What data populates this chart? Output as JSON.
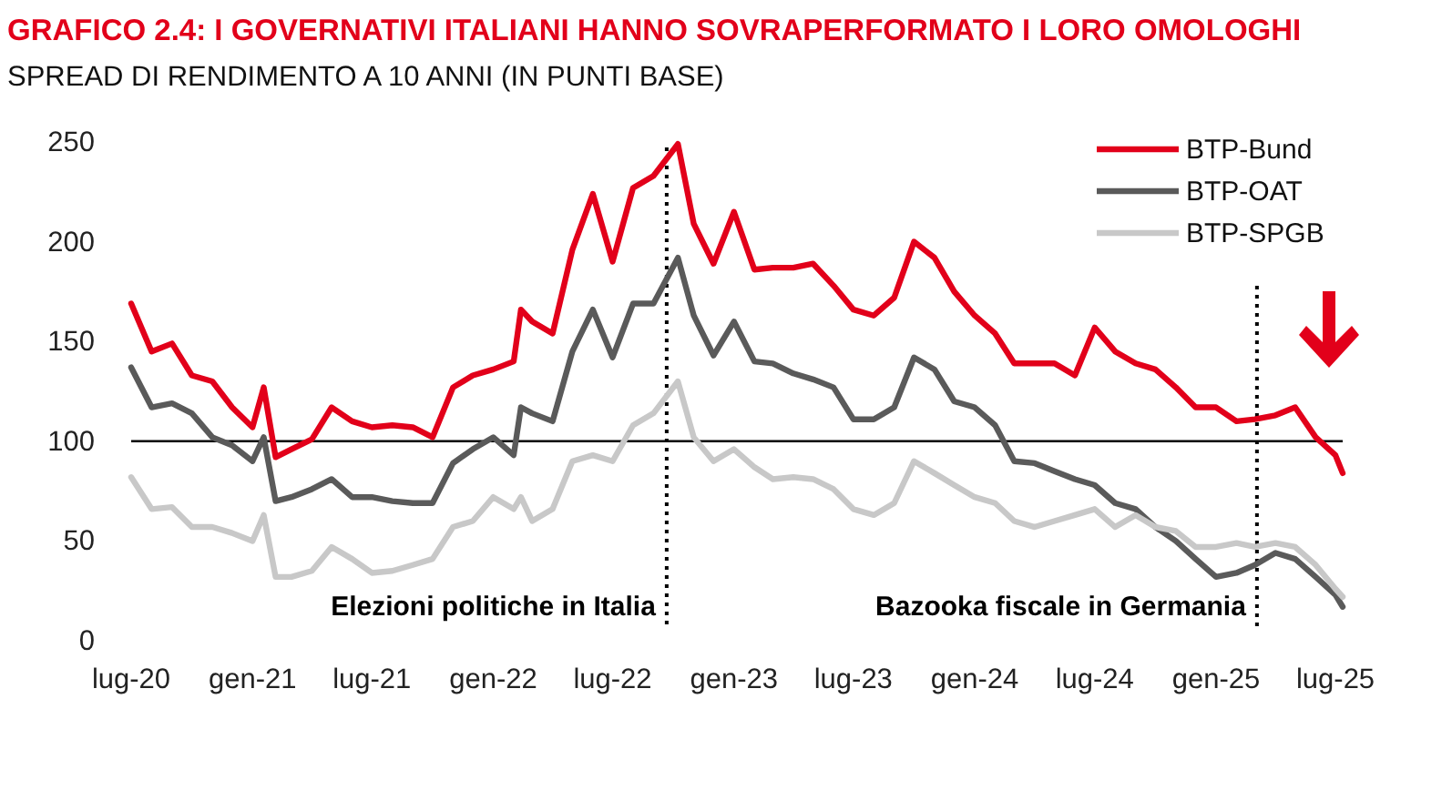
{
  "chart_data": {
    "type": "line",
    "title": "GRAFICO 2.4: I GOVERNATIVI ITALIANI HANNO SOVRAPERFORMATO I LORO OMOLOGHI",
    "subtitle": "SPREAD DI RENDIMENTO A 10 ANNI (IN PUNTI BASE)",
    "x": [
      "2020-07-01",
      "2020-08-01",
      "2020-09-01",
      "2020-10-01",
      "2020-11-01",
      "2020-12-01",
      "2021-01-01",
      "2021-01-18",
      "2021-02-05",
      "2021-03-01",
      "2021-04-01",
      "2021-05-01",
      "2021-06-01",
      "2021-07-01",
      "2021-08-01",
      "2021-09-01",
      "2021-10-01",
      "2021-11-01",
      "2021-12-01",
      "2022-01-01",
      "2022-02-01",
      "2022-02-12",
      "2022-03-01",
      "2022-04-01",
      "2022-05-01",
      "2022-06-01",
      "2022-07-01",
      "2022-08-01",
      "2022-09-01",
      "2022-10-08",
      "2022-11-01",
      "2022-12-01",
      "2023-01-01",
      "2023-02-01",
      "2023-03-01",
      "2023-04-01",
      "2023-05-01",
      "2023-06-01",
      "2023-07-01",
      "2023-08-01",
      "2023-09-01",
      "2023-10-01",
      "2023-11-01",
      "2023-12-01",
      "2024-01-01",
      "2024-02-01",
      "2024-03-01",
      "2024-04-01",
      "2024-05-01",
      "2024-06-01",
      "2024-07-01",
      "2024-08-01",
      "2024-09-01",
      "2024-10-01",
      "2024-11-01",
      "2024-12-01",
      "2025-01-01",
      "2025-02-01",
      "2025-03-01",
      "2025-04-01",
      "2025-05-01",
      "2025-06-01",
      "2025-07-01",
      "2025-07-12"
    ],
    "series": [
      {
        "name": "BTP-Bund",
        "color": "#e2001a",
        "values": [
          169,
          145,
          149,
          133,
          130,
          117,
          107,
          127,
          92,
          96,
          101,
          117,
          110,
          107,
          108,
          107,
          102,
          127,
          133,
          136,
          140,
          166,
          160,
          154,
          196,
          224,
          190,
          227,
          233,
          249,
          209,
          189,
          215,
          186,
          187,
          187,
          189,
          178,
          166,
          163,
          172,
          200,
          192,
          175,
          163,
          154,
          139,
          139,
          139,
          133,
          157,
          145,
          139,
          136,
          127,
          117,
          117,
          110,
          111,
          113,
          117,
          102,
          93,
          84
        ]
      },
      {
        "name": "BTP-OAT",
        "color": "#5a5a5a",
        "values": [
          137,
          117,
          119,
          114,
          102,
          98,
          90,
          102,
          70,
          72,
          76,
          81,
          72,
          72,
          70,
          69,
          69,
          89,
          96,
          102,
          93,
          117,
          114,
          110,
          145,
          166,
          142,
          169,
          169,
          192,
          163,
          143,
          160,
          140,
          139,
          134,
          131,
          127,
          111,
          111,
          117,
          142,
          136,
          120,
          117,
          108,
          90,
          89,
          85,
          81,
          78,
          69,
          66,
          57,
          50,
          41,
          32,
          34,
          38,
          44,
          41,
          32,
          23,
          17
        ]
      },
      {
        "name": "BTP-SPGB",
        "color": "#c8c8c8",
        "values": [
          82,
          66,
          67,
          57,
          57,
          54,
          50,
          63,
          32,
          32,
          35,
          47,
          41,
          34,
          35,
          38,
          41,
          57,
          60,
          72,
          66,
          72,
          60,
          66,
          90,
          93,
          90,
          108,
          114,
          130,
          102,
          90,
          96,
          87,
          81,
          82,
          81,
          76,
          66,
          63,
          69,
          90,
          84,
          78,
          72,
          69,
          60,
          57,
          60,
          63,
          66,
          57,
          63,
          57,
          55,
          47,
          47,
          49,
          47,
          49,
          47,
          38,
          26,
          22
        ]
      }
    ],
    "xlim": [
      "2020-07-01",
      "2025-07-12"
    ],
    "xticks": [
      {
        "value": "2020-07-01",
        "label": "lug-20"
      },
      {
        "value": "2021-01-01",
        "label": "gen-21"
      },
      {
        "value": "2021-07-01",
        "label": "lug-21"
      },
      {
        "value": "2022-01-01",
        "label": "gen-22"
      },
      {
        "value": "2022-07-01",
        "label": "lug-22"
      },
      {
        "value": "2023-01-01",
        "label": "gen-23"
      },
      {
        "value": "2023-07-01",
        "label": "lug-23"
      },
      {
        "value": "2024-01-01",
        "label": "gen-24"
      },
      {
        "value": "2024-07-01",
        "label": "lug-24"
      },
      {
        "value": "2025-01-01",
        "label": "gen-25"
      },
      {
        "value": "2025-07-01",
        "label": "lug-25"
      }
    ],
    "ylim": [
      0,
      250
    ],
    "yticks": [
      0,
      50,
      100,
      150,
      200,
      250
    ],
    "ref_lines": [
      {
        "axis": "y",
        "value": 100,
        "color": "#000000",
        "line_style": "solid"
      },
      {
        "axis": "x",
        "value": "2022-09-21",
        "label": "Elezioni politiche in Italia",
        "color": "#000000",
        "line_style": "dotted"
      },
      {
        "axis": "x",
        "value": "2025-03-04",
        "label": "Bazooka fiscale in Germania",
        "color": "#000000",
        "line_style": "dotted"
      }
    ],
    "legend": "top right",
    "grid": false,
    "marker": "none",
    "line_style": "solid"
  }
}
